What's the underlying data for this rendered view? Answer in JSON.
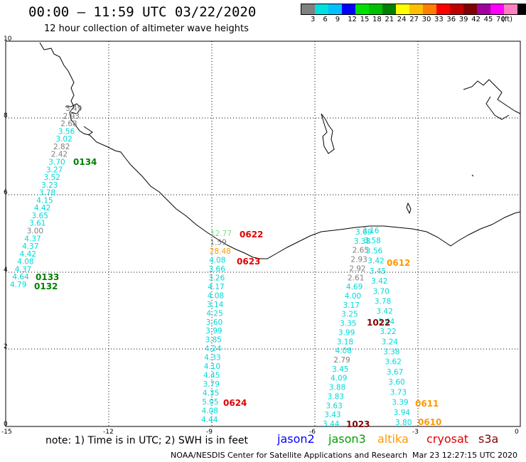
{
  "header": {
    "title": "00:00 – 11:59 UTC 03/22/2020",
    "subtitle": "12 hour collection of altimeter wave heights"
  },
  "legend": {
    "unit": "(ft)",
    "colors": [
      "#808080",
      "#00e0e0",
      "#00c0ff",
      "#0000ff",
      "#00e000",
      "#00c000",
      "#008000",
      "#ffff00",
      "#ffc000",
      "#ff8000",
      "#ff0000",
      "#c00000",
      "#800000",
      "#a000a0",
      "#ff00ff",
      "#ff80c0",
      "#000000"
    ],
    "labels": [
      "3",
      "6",
      "9",
      "12",
      "15",
      "18",
      "21",
      "24",
      "27",
      "30",
      "33",
      "36",
      "39",
      "42",
      "45",
      "70"
    ]
  },
  "axes": {
    "x_ticks": [
      "-15",
      "-12",
      "-9",
      "-6",
      "-3",
      "0"
    ],
    "y_ticks": [
      "0",
      "2",
      "4",
      "6",
      "8",
      "10"
    ]
  },
  "note": "note:  1) Time is in UTC;  2) SWH is in feet",
  "satellites": [
    {
      "name": "jason2",
      "color": "#0000ff"
    },
    {
      "name": "jason3",
      "color": "#00a000"
    },
    {
      "name": "altika",
      "color": "#ff9900"
    },
    {
      "name": "cryosat",
      "color": "#e00000"
    },
    {
      "name": "s3a",
      "color": "#800000"
    }
  ],
  "footer": {
    "credit": "NOAA/NESDIS Center for Satellite Applications and Research",
    "timestamp": "Mar 23 12:27:15 UTC 2020"
  },
  "passes": [
    {
      "id": "0134",
      "color": "#008000"
    },
    {
      "id": "0133",
      "color": "#008000"
    },
    {
      "id": "0132",
      "color": "#008000"
    },
    {
      "id": "0622",
      "color": "#e00000"
    },
    {
      "id": "0623",
      "color": "#e00000"
    },
    {
      "id": "0624",
      "color": "#e00000"
    },
    {
      "id": "0612",
      "color": "#ff9900"
    },
    {
      "id": "1022",
      "color": "#800000"
    },
    {
      "id": "1023",
      "color": "#800000"
    },
    {
      "id": "0611",
      "color": "#ff9900"
    },
    {
      "id": "0610",
      "color": "#ff9900"
    }
  ],
  "tracks": {
    "track_a": [
      {
        "v": "3.49",
        "c": "#808080"
      },
      {
        "v": "2.93",
        "c": "#808080"
      },
      {
        "v": "2.68",
        "c": "#808080"
      },
      {
        "v": "3.56",
        "c": "#00d8d8"
      },
      {
        "v": "3.02",
        "c": "#00d8d8"
      },
      {
        "v": "2.82",
        "c": "#808080"
      },
      {
        "v": "2.42",
        "c": "#808080"
      },
      {
        "v": "3.70",
        "c": "#00d8d8"
      },
      {
        "v": "3.27",
        "c": "#00d8d8"
      },
      {
        "v": "3.52",
        "c": "#00d8d8"
      },
      {
        "v": "3.23",
        "c": "#00d8d8"
      },
      {
        "v": "3.78",
        "c": "#00d8d8"
      },
      {
        "v": "4.15",
        "c": "#00d8d8"
      },
      {
        "v": "4.42",
        "c": "#00d8d8"
      },
      {
        "v": "3.65",
        "c": "#00d8d8"
      },
      {
        "v": "3.61",
        "c": "#00d8d8"
      },
      {
        "v": "3.00",
        "c": "#808080"
      },
      {
        "v": "4.37",
        "c": "#00d8d8"
      },
      {
        "v": "4.37",
        "c": "#00d8d8"
      },
      {
        "v": "4.42",
        "c": "#00d8d8"
      },
      {
        "v": "4.08",
        "c": "#00d8d8"
      },
      {
        "v": "4.37",
        "c": "#00d8d8"
      },
      {
        "v": "4.64",
        "c": "#00d8d8"
      },
      {
        "v": "4.79",
        "c": "#00d8d8"
      }
    ],
    "track_b": [
      {
        "v": "12.77",
        "c": "#80e080"
      },
      {
        "v": "1.59",
        "c": "#808080"
      },
      {
        "v": "28.48",
        "c": "#ff9900"
      },
      {
        "v": "4.08",
        "c": "#00d8d8"
      },
      {
        "v": "3.66",
        "c": "#00d8d8"
      },
      {
        "v": "3.26",
        "c": "#00d8d8"
      },
      {
        "v": "4.17",
        "c": "#00d8d8"
      },
      {
        "v": "4.08",
        "c": "#00d8d8"
      },
      {
        "v": "3.14",
        "c": "#00d8d8"
      },
      {
        "v": "4.25",
        "c": "#00d8d8"
      },
      {
        "v": "3.60",
        "c": "#00d8d8"
      },
      {
        "v": "3.99",
        "c": "#00d8d8"
      },
      {
        "v": "3.85",
        "c": "#00d8d8"
      },
      {
        "v": "4.24",
        "c": "#00d8d8"
      },
      {
        "v": "4.33",
        "c": "#00d8d8"
      },
      {
        "v": "4.10",
        "c": "#00d8d8"
      },
      {
        "v": "4.45",
        "c": "#00d8d8"
      },
      {
        "v": "3.79",
        "c": "#00d8d8"
      },
      {
        "v": "4.35",
        "c": "#00d8d8"
      },
      {
        "v": "5.05",
        "c": "#00d8d8"
      },
      {
        "v": "4.08",
        "c": "#00d8d8"
      },
      {
        "v": "4.44",
        "c": "#00d8d8"
      }
    ],
    "track_c": [
      {
        "v": "3.69",
        "c": "#00d8d8"
      },
      {
        "v": "3.38",
        "c": "#00d8d8"
      },
      {
        "v": "2.65",
        "c": "#808080"
      },
      {
        "v": "2.93",
        "c": "#808080"
      },
      {
        "v": "2.92",
        "c": "#808080"
      },
      {
        "v": "2.61",
        "c": "#808080"
      },
      {
        "v": "4.69",
        "c": "#00d8d8"
      },
      {
        "v": "4.00",
        "c": "#00d8d8"
      },
      {
        "v": "3.17",
        "c": "#00d8d8"
      },
      {
        "v": "3.25",
        "c": "#00d8d8"
      },
      {
        "v": "3.35",
        "c": "#00d8d8"
      },
      {
        "v": "3.99",
        "c": "#00d8d8"
      },
      {
        "v": "3.18",
        "c": "#00d8d8"
      },
      {
        "v": "4.08",
        "c": "#00d8d8"
      },
      {
        "v": "2.79",
        "c": "#808080"
      },
      {
        "v": "3.45",
        "c": "#00d8d8"
      },
      {
        "v": "4.09",
        "c": "#00d8d8"
      },
      {
        "v": "3.88",
        "c": "#00d8d8"
      },
      {
        "v": "3.83",
        "c": "#00d8d8"
      },
      {
        "v": "3.63",
        "c": "#00d8d8"
      },
      {
        "v": "3.43",
        "c": "#00d8d8"
      },
      {
        "v": "3.44",
        "c": "#00d8d8"
      }
    ],
    "track_d": [
      {
        "v": "3.16",
        "c": "#00d8d8"
      },
      {
        "v": "3.58",
        "c": "#00d8d8"
      },
      {
        "v": "3.56",
        "c": "#00d8d8"
      },
      {
        "v": "3.42",
        "c": "#00d8d8"
      },
      {
        "v": "3.45",
        "c": "#00d8d8"
      },
      {
        "v": "3.42",
        "c": "#00d8d8"
      },
      {
        "v": "3.70",
        "c": "#00d8d8"
      },
      {
        "v": "3.78",
        "c": "#00d8d8"
      },
      {
        "v": "3.42",
        "c": "#00d8d8"
      },
      {
        "v": "3.44",
        "c": "#00d8d8"
      },
      {
        "v": "3.22",
        "c": "#00d8d8"
      },
      {
        "v": "3.24",
        "c": "#00d8d8"
      },
      {
        "v": "3.38",
        "c": "#00d8d8"
      },
      {
        "v": "3.62",
        "c": "#00d8d8"
      },
      {
        "v": "3.67",
        "c": "#00d8d8"
      },
      {
        "v": "3.60",
        "c": "#00d8d8"
      },
      {
        "v": "3.73",
        "c": "#00d8d8"
      },
      {
        "v": "3.39",
        "c": "#00d8d8"
      },
      {
        "v": "3.94",
        "c": "#00d8d8"
      },
      {
        "v": "3.80",
        "c": "#00d8d8"
      }
    ]
  }
}
